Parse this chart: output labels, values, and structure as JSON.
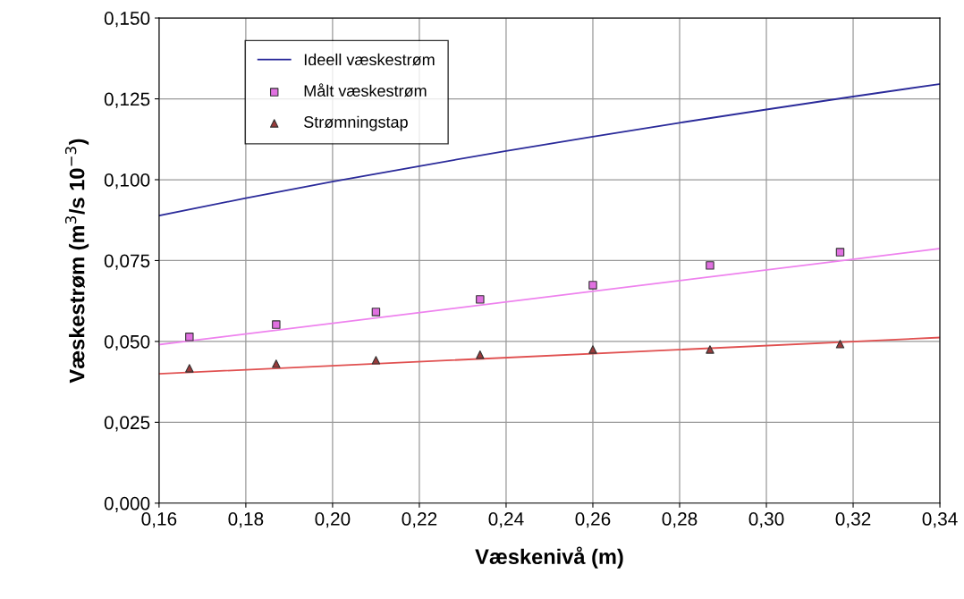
{
  "chart_data": {
    "type": "line",
    "xlabel": "Væskenivå (m)",
    "ylabel": "Væskestrøm (m$^{3}$/s 10$^{−3}$)",
    "xlim": [
      0.16,
      0.34
    ],
    "ylim": [
      0,
      0.15
    ],
    "xticks": [
      {
        "value": 0.16,
        "label": "0,16"
      },
      {
        "value": 0.18,
        "label": "0,18"
      },
      {
        "value": 0.2,
        "label": "0,20"
      },
      {
        "value": 0.22,
        "label": "0,22"
      },
      {
        "value": 0.24,
        "label": "0,24"
      },
      {
        "value": 0.26,
        "label": "0,26"
      },
      {
        "value": 0.28,
        "label": "0,28"
      },
      {
        "value": 0.3,
        "label": "0,30"
      },
      {
        "value": 0.32,
        "label": "0,32"
      },
      {
        "value": 0.34,
        "label": "0,34"
      }
    ],
    "yticks": [
      {
        "value": 0,
        "label": "0,000"
      },
      {
        "value": 0.025,
        "label": "0,025"
      },
      {
        "value": 0.05,
        "label": "0,050"
      },
      {
        "value": 0.075,
        "label": "0,075"
      },
      {
        "value": 0.1,
        "label": "0,100"
      },
      {
        "value": 0.125,
        "label": "0,125"
      },
      {
        "value": 0.15,
        "label": "0,150"
      }
    ],
    "grid": true,
    "legend": "top left",
    "series": [
      {
        "name": "Ideell væskestrøm",
        "color": "#2b2b9a",
        "marker": "none",
        "x": [
          0.16,
          0.18,
          0.2,
          0.22,
          0.24,
          0.26,
          0.28,
          0.3,
          0.32,
          0.34
        ],
        "values": [
          0.0889,
          0.0943,
          0.0994,
          0.1042,
          0.1089,
          0.1133,
          0.1176,
          0.1217,
          0.1257,
          0.1296
        ]
      },
      {
        "name": "Målt væskestrøm",
        "type": "scatter",
        "color": "#e070e0",
        "marker": "square",
        "x": [
          0.167,
          0.187,
          0.21,
          0.234,
          0.26,
          0.287,
          0.317
        ],
        "values": [
          0.0514,
          0.0552,
          0.0591,
          0.063,
          0.0674,
          0.0735,
          0.0776
        ]
      },
      {
        "name": "Strømningstap",
        "type": "scatter",
        "color": "#9b3a3a",
        "marker": "triangle",
        "x": [
          0.167,
          0.187,
          0.21,
          0.234,
          0.26,
          0.287,
          0.317
        ],
        "values": [
          0.0417,
          0.0431,
          0.0442,
          0.0459,
          0.0475,
          0.0475,
          0.0492
        ]
      },
      {
        "color": "#ee82ee",
        "marker": "none",
        "x": [
          0.16,
          0.34
        ],
        "values": [
          0.049,
          0.0787
        ]
      },
      {
        "color": "#e05050",
        "marker": "none",
        "x": [
          0.16,
          0.34
        ],
        "values": [
          0.04,
          0.0512
        ]
      }
    ]
  }
}
